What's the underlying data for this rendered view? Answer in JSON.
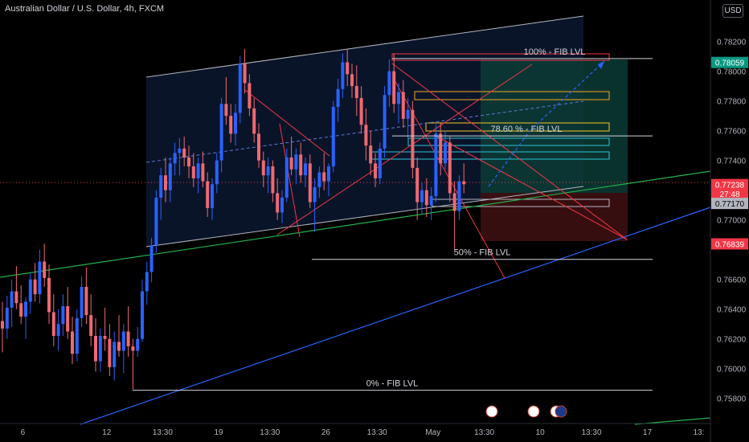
{
  "header": {
    "title": "Australian Dollar / U.S. Dollar, 4h, FXCM",
    "currency_button": "USD"
  },
  "chart_data": {
    "type": "candlestick",
    "symbol": "AUD/USD",
    "timeframe": "4h",
    "ylim": [
      0.7575,
      0.7836
    ],
    "y_ticks": [
      "0.78200",
      "0.78000",
      "0.77800",
      "0.77600",
      "0.77400",
      "0.77200",
      "0.77000",
      "0.76600",
      "0.76400",
      "0.76200",
      "0.76000",
      "0.75800"
    ],
    "x_ticks": [
      {
        "label": "6",
        "i": 3
      },
      {
        "label": "12",
        "i": 21
      },
      {
        "label": "13:30",
        "i": 33
      },
      {
        "label": "19",
        "i": 45
      },
      {
        "label": "13:30",
        "i": 56
      },
      {
        "label": "26",
        "i": 68
      },
      {
        "label": "13:30",
        "i": 79
      },
      {
        "label": "May",
        "i": 91
      },
      {
        "label": "13:30",
        "i": 102
      },
      {
        "label": "10",
        "i": 114
      },
      {
        "label": "13:30",
        "i": 125
      },
      {
        "label": "17",
        "i": 137
      },
      {
        "label": "13:",
        "i": 148
      }
    ],
    "price_tags": [
      {
        "label": "0.78059",
        "value": 0.78059,
        "color": "#089981"
      },
      {
        "label": "0.77238",
        "value": 0.77238,
        "color": "#f23645"
      },
      {
        "label": "27:48",
        "value": 0.77176,
        "color": "#f23645"
      },
      {
        "label": "0.77170",
        "value": 0.77111,
        "color": "#b2b5be"
      },
      {
        "label": "0.76839",
        "value": 0.76839,
        "color": "#f23645"
      }
    ],
    "fib_levels": [
      {
        "label": "100% - FIB LVL",
        "value": 0.78085
      },
      {
        "label": "78.60 % - FIB LVL",
        "value": 0.77565
      },
      {
        "label": "50% - FIB LVL",
        "value": 0.76735
      },
      {
        "label": "0% - FIB LVL",
        "value": 0.75855
      }
    ],
    "ohlc": [
      [
        0.7632,
        0.7645,
        0.7611,
        0.7627
      ],
      [
        0.7627,
        0.7649,
        0.762,
        0.7641
      ],
      [
        0.7641,
        0.766,
        0.7628,
        0.7652
      ],
      [
        0.7652,
        0.7669,
        0.764,
        0.7644
      ],
      [
        0.7644,
        0.7656,
        0.763,
        0.7635
      ],
      [
        0.7635,
        0.7648,
        0.762,
        0.7645
      ],
      [
        0.7645,
        0.7664,
        0.7637,
        0.766
      ],
      [
        0.766,
        0.7671,
        0.7645,
        0.765
      ],
      [
        0.765,
        0.768,
        0.7644,
        0.7672
      ],
      [
        0.7672,
        0.7684,
        0.7655,
        0.7661
      ],
      [
        0.7661,
        0.767,
        0.763,
        0.7638
      ],
      [
        0.7638,
        0.765,
        0.7615,
        0.7622
      ],
      [
        0.7622,
        0.764,
        0.7612,
        0.763
      ],
      [
        0.763,
        0.765,
        0.7622,
        0.7642
      ],
      [
        0.7642,
        0.7655,
        0.762,
        0.7625
      ],
      [
        0.7625,
        0.7635,
        0.7603,
        0.761
      ],
      [
        0.761,
        0.764,
        0.7605,
        0.7634
      ],
      [
        0.7634,
        0.7662,
        0.7628,
        0.7655
      ],
      [
        0.7655,
        0.7668,
        0.763,
        0.7636
      ],
      [
        0.7636,
        0.765,
        0.7615,
        0.7622
      ],
      [
        0.7622,
        0.7634,
        0.7598,
        0.7605
      ],
      [
        0.7605,
        0.7627,
        0.7598,
        0.7622
      ],
      [
        0.7622,
        0.7641,
        0.7612,
        0.762
      ],
      [
        0.762,
        0.763,
        0.7595,
        0.7601
      ],
      [
        0.7601,
        0.7625,
        0.7592,
        0.7618
      ],
      [
        0.7618,
        0.7636,
        0.7608,
        0.7612
      ],
      [
        0.7612,
        0.763,
        0.7597,
        0.7625
      ],
      [
        0.7625,
        0.7642,
        0.7608,
        0.7615
      ],
      [
        0.7615,
        0.762,
        0.7586,
        0.7612
      ],
      [
        0.7612,
        0.7628,
        0.7608,
        0.762
      ],
      [
        0.762,
        0.766,
        0.7618,
        0.7652
      ],
      [
        0.7652,
        0.7672,
        0.7643,
        0.7665
      ],
      [
        0.7665,
        0.7688,
        0.7658,
        0.7683
      ],
      [
        0.7683,
        0.772,
        0.7678,
        0.7715
      ],
      [
        0.7715,
        0.7735,
        0.77,
        0.773
      ],
      [
        0.773,
        0.7742,
        0.7712,
        0.772
      ],
      [
        0.772,
        0.7742,
        0.7712,
        0.7738
      ],
      [
        0.7738,
        0.7752,
        0.773,
        0.7745
      ],
      [
        0.7745,
        0.7755,
        0.773,
        0.7748
      ],
      [
        0.7748,
        0.7756,
        0.7736,
        0.7742
      ],
      [
        0.7742,
        0.775,
        0.7728,
        0.7736
      ],
      [
        0.7736,
        0.7745,
        0.7722,
        0.7728
      ],
      [
        0.7728,
        0.7742,
        0.7718,
        0.7738
      ],
      [
        0.7738,
        0.7746,
        0.7722,
        0.7726
      ],
      [
        0.7726,
        0.7732,
        0.7702,
        0.7708
      ],
      [
        0.7708,
        0.7728,
        0.77,
        0.7724
      ],
      [
        0.7724,
        0.7745,
        0.7718,
        0.774
      ],
      [
        0.774,
        0.7782,
        0.7732,
        0.7778
      ],
      [
        0.7778,
        0.7796,
        0.7764,
        0.777
      ],
      [
        0.777,
        0.7778,
        0.7752,
        0.7758
      ],
      [
        0.7758,
        0.7778,
        0.775,
        0.7772
      ],
      [
        0.7772,
        0.781,
        0.7765,
        0.7805
      ],
      [
        0.7805,
        0.7815,
        0.7785,
        0.7792
      ],
      [
        0.7792,
        0.7798,
        0.777,
        0.7775
      ],
      [
        0.7775,
        0.7782,
        0.7752,
        0.7758
      ],
      [
        0.7758,
        0.7765,
        0.7735,
        0.774
      ],
      [
        0.774,
        0.7746,
        0.7722,
        0.773
      ],
      [
        0.773,
        0.7742,
        0.7718,
        0.7736
      ],
      [
        0.7736,
        0.774,
        0.7712,
        0.7718
      ],
      [
        0.7718,
        0.7728,
        0.77,
        0.7705
      ],
      [
        0.7705,
        0.772,
        0.7698,
        0.7715
      ],
      [
        0.7715,
        0.7748,
        0.7712,
        0.7742
      ],
      [
        0.7742,
        0.7756,
        0.773,
        0.7734
      ],
      [
        0.7734,
        0.7748,
        0.7724,
        0.7744
      ],
      [
        0.7744,
        0.7752,
        0.7725,
        0.773
      ],
      [
        0.773,
        0.7742,
        0.7722,
        0.7738
      ],
      [
        0.7738,
        0.7744,
        0.7708,
        0.7712
      ],
      [
        0.7712,
        0.7728,
        0.7692,
        0.7722
      ],
      [
        0.7722,
        0.7736,
        0.7715,
        0.7732
      ],
      [
        0.7732,
        0.7745,
        0.772,
        0.7726
      ],
      [
        0.7726,
        0.7738,
        0.7716,
        0.7736
      ],
      [
        0.7736,
        0.778,
        0.7732,
        0.7776
      ],
      [
        0.7776,
        0.7795,
        0.7766,
        0.7788
      ],
      [
        0.7788,
        0.7812,
        0.7782,
        0.7806
      ],
      [
        0.7806,
        0.7815,
        0.779,
        0.7798
      ],
      [
        0.7798,
        0.7805,
        0.7782,
        0.779
      ],
      [
        0.779,
        0.7804,
        0.777,
        0.7782
      ],
      [
        0.7782,
        0.779,
        0.7758,
        0.7764
      ],
      [
        0.7764,
        0.7775,
        0.774,
        0.775
      ],
      [
        0.775,
        0.776,
        0.773,
        0.7738
      ],
      [
        0.7738,
        0.7745,
        0.7722,
        0.7728
      ],
      [
        0.7728,
        0.7752,
        0.7724,
        0.7748
      ],
      [
        0.7748,
        0.779,
        0.7742,
        0.7784
      ],
      [
        0.7784,
        0.7808,
        0.7776,
        0.78
      ],
      [
        0.78,
        0.7812,
        0.7772,
        0.7778
      ],
      [
        0.7778,
        0.7792,
        0.7765,
        0.7786
      ],
      [
        0.7786,
        0.7794,
        0.7762,
        0.7768
      ],
      [
        0.7768,
        0.7782,
        0.7755,
        0.7774
      ],
      [
        0.7774,
        0.778,
        0.7728,
        0.7735
      ],
      [
        0.7735,
        0.7742,
        0.77,
        0.7712
      ],
      [
        0.7712,
        0.7725,
        0.7704,
        0.772
      ],
      [
        0.772,
        0.7728,
        0.7702,
        0.771
      ],
      [
        0.771,
        0.7722,
        0.77,
        0.7716
      ],
      [
        0.7716,
        0.7764,
        0.7712,
        0.7758
      ],
      [
        0.7758,
        0.7765,
        0.773,
        0.7738
      ],
      [
        0.7738,
        0.776,
        0.7734,
        0.7752
      ],
      [
        0.7752,
        0.7756,
        0.7712,
        0.7718
      ],
      [
        0.7718,
        0.7726,
        0.768,
        0.7706
      ],
      [
        0.7706,
        0.773,
        0.77,
        0.7726
      ],
      [
        0.7726,
        0.7738,
        0.7718,
        0.7724
      ]
    ]
  }
}
